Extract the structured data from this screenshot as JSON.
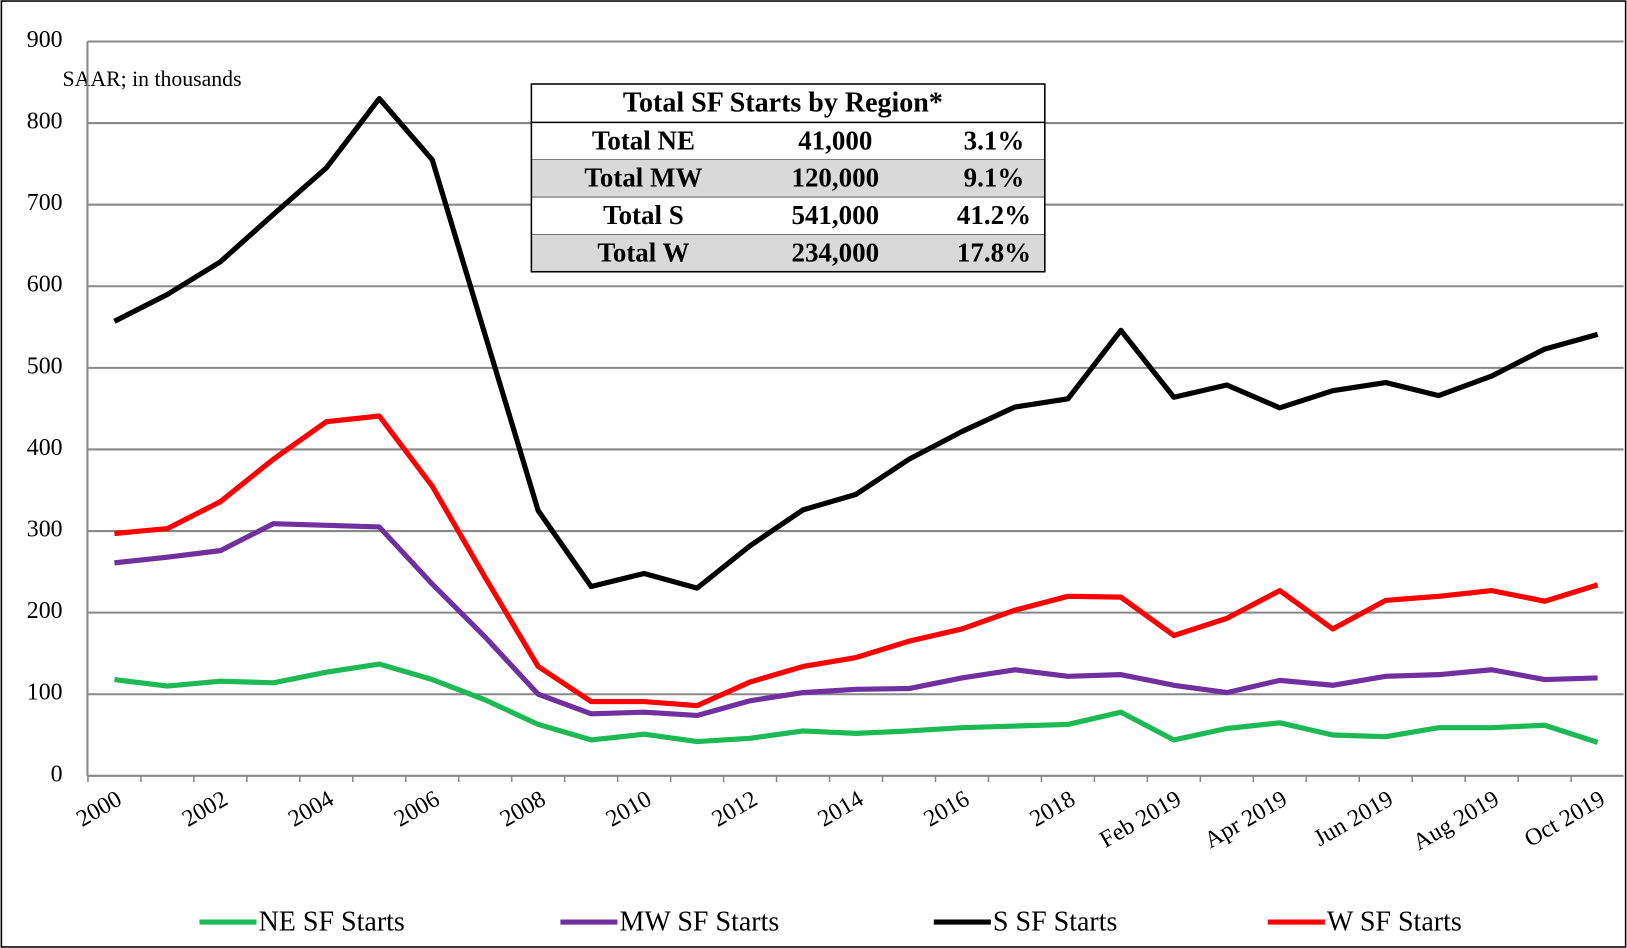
{
  "chart_data": {
    "type": "line",
    "annotation": "SAAR; in thousands",
    "categories": [
      "2000",
      null,
      "2002",
      null,
      "2004",
      null,
      "2006",
      null,
      "2008",
      null,
      "2010",
      null,
      "2012",
      null,
      "2014",
      null,
      "2016",
      null,
      "2018",
      null,
      "Feb 2019",
      null,
      "Apr 2019",
      null,
      "Jun 2019",
      null,
      "Aug 2019",
      null,
      "Oct 2019"
    ],
    "series": [
      {
        "name": "NE SF Starts",
        "color": "#1db954",
        "values": [
          118,
          110,
          116,
          114,
          127,
          137,
          118,
          93,
          63,
          44,
          51,
          42,
          46,
          55,
          52,
          55,
          59,
          61,
          63,
          78,
          44,
          58,
          65,
          50,
          48,
          59,
          59,
          62,
          41
        ]
      },
      {
        "name": "MW SF Starts",
        "color": "#7030a0",
        "values": [
          261,
          268,
          276,
          309,
          307,
          305,
          235,
          170,
          100,
          76,
          78,
          74,
          92,
          102,
          106,
          107,
          120,
          130,
          122,
          124,
          111,
          102,
          117,
          111,
          122,
          124,
          130,
          118,
          120
        ]
      },
      {
        "name": "S SF Starts",
        "color": "#000000",
        "values": [
          557,
          590,
          630,
          688,
          745,
          830,
          755,
          540,
          325,
          232,
          248,
          230,
          282,
          326,
          345,
          388,
          422,
          452,
          462,
          546,
          464,
          479,
          451,
          472,
          482,
          466,
          490,
          523,
          541
        ]
      },
      {
        "name": "W SF Starts",
        "color": "#ff0000",
        "values": [
          297,
          303,
          336,
          388,
          434,
          441,
          355,
          243,
          134,
          91,
          91,
          86,
          115,
          134,
          145,
          165,
          180,
          203,
          220,
          219,
          172,
          193,
          227,
          180,
          215,
          220,
          227,
          214,
          234
        ]
      }
    ],
    "ylim": [
      0,
      900
    ],
    "yticks": [
      0,
      100,
      200,
      300,
      400,
      500,
      600,
      700,
      800,
      900
    ],
    "grid": true,
    "legend": "bottom",
    "table": {
      "title": "Total SF Starts by Region*",
      "rows": [
        [
          "Total NE",
          "41,000",
          "3.1%"
        ],
        [
          "Total MW",
          "120,000",
          "9.1%"
        ],
        [
          "Total S",
          "541,000",
          "41.2%"
        ],
        [
          "Total W",
          "234,000",
          "17.8%"
        ]
      ]
    }
  }
}
